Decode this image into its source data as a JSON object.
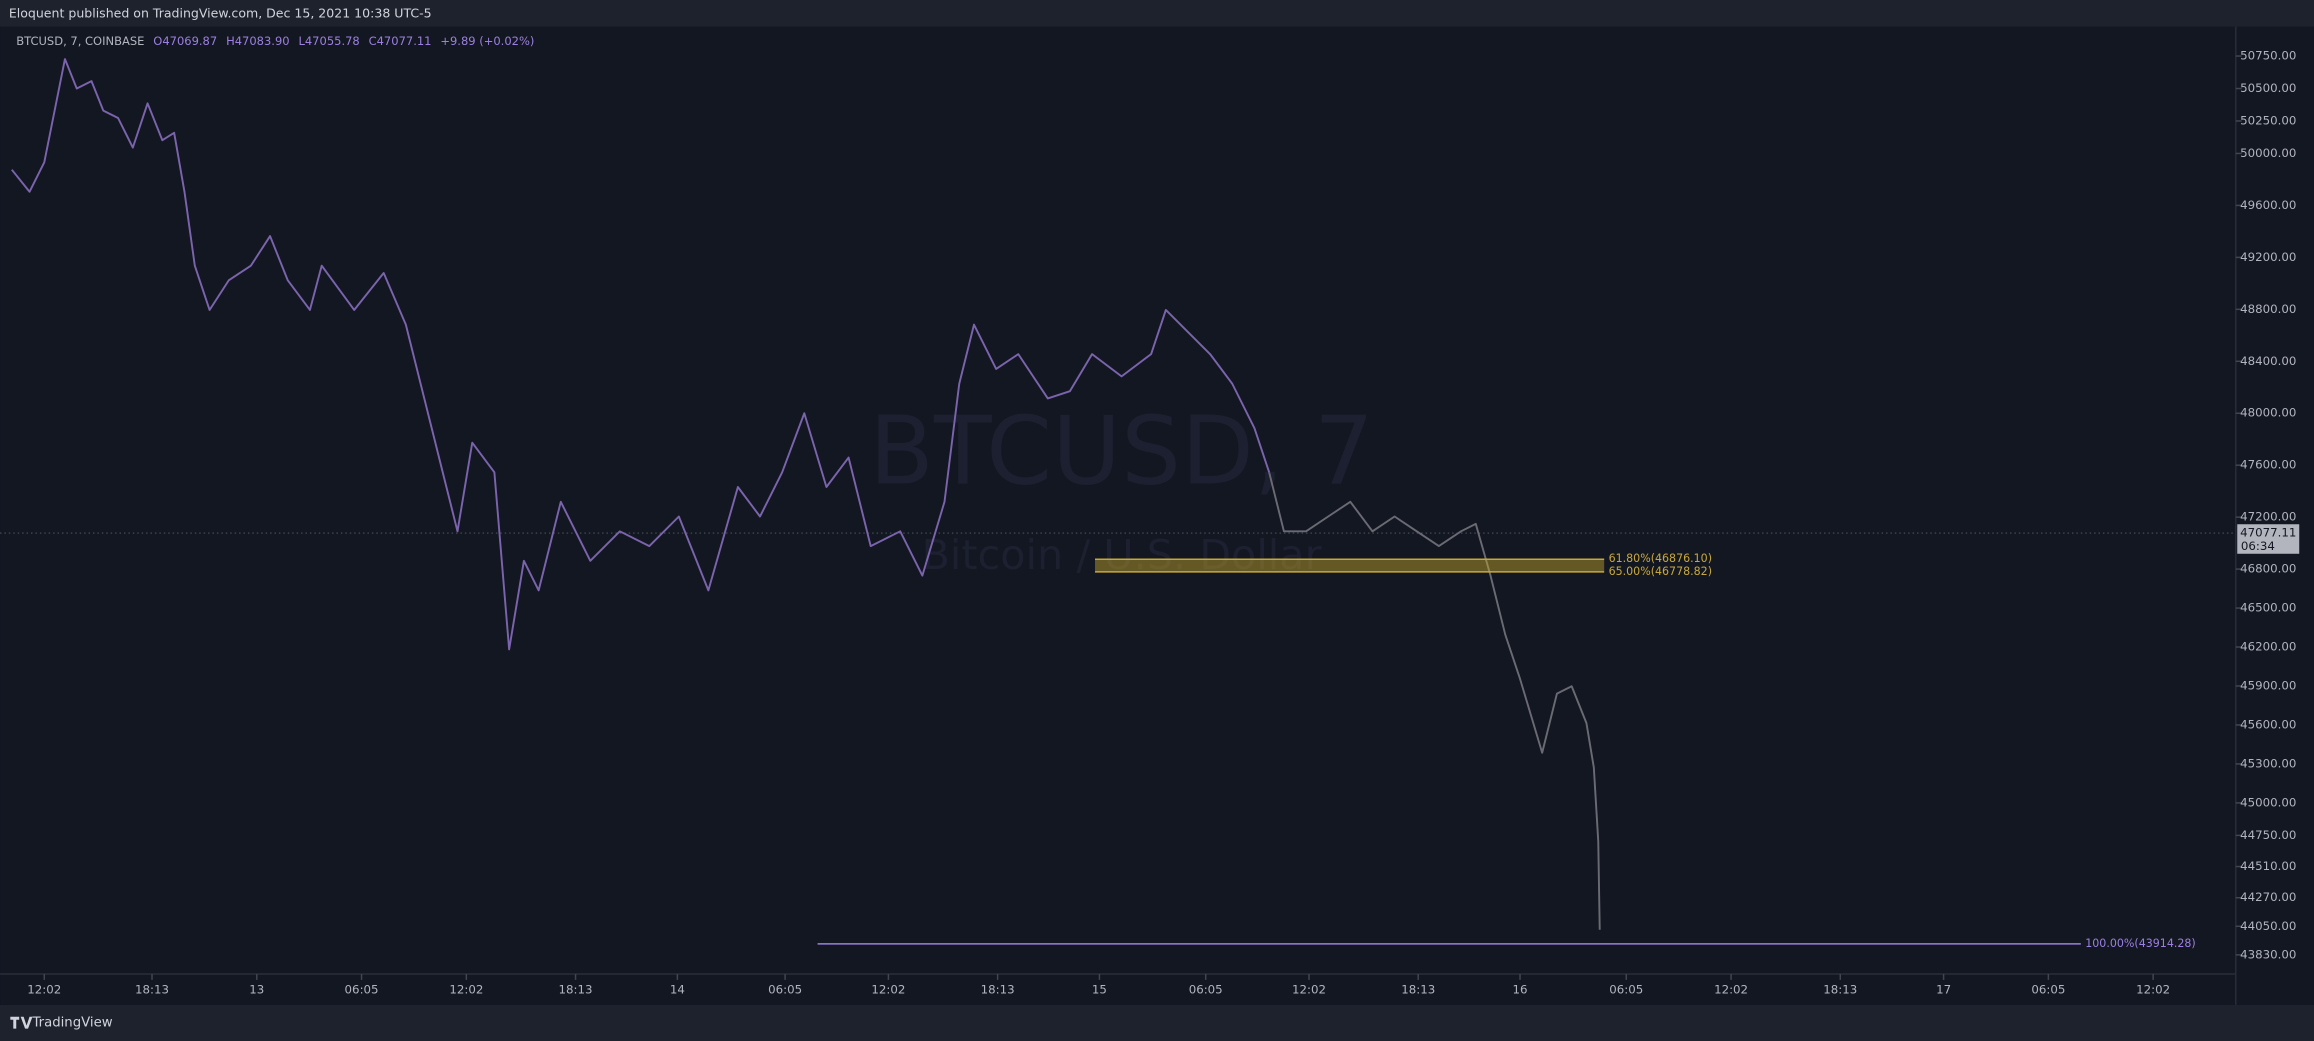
{
  "chart_data": {
    "type": "line",
    "header": "Eloquent published on TradingView.com, Dec 15, 2021 10:38 UTC-5",
    "legend": [
      "BTCUSD, 7, COINBASE",
      "O47069.87",
      "H47083.90",
      "L47055.78",
      "C47077.11",
      "+9.89 (+0.02%)"
    ],
    "watermark": {
      "symbol": "BTCUSD, 7",
      "description": "Bitcoin / U.S. Dollar"
    },
    "footer": "TradingView",
    "xlim": [
      0,
      1515
    ],
    "xticks": [
      {
        "value": 30,
        "label": "12:02"
      },
      {
        "value": 103,
        "label": "18:13"
      },
      {
        "value": 174,
        "label": "13"
      },
      {
        "value": 245,
        "label": "06:05"
      },
      {
        "value": 316,
        "label": "12:02"
      },
      {
        "value": 390,
        "label": "18:13"
      },
      {
        "value": 459,
        "label": "14"
      },
      {
        "value": 532,
        "label": "06:05"
      },
      {
        "value": 602,
        "label": "12:02"
      },
      {
        "value": 676,
        "label": "18:13"
      },
      {
        "value": 745,
        "label": "15"
      },
      {
        "value": 817,
        "label": "06:05"
      },
      {
        "value": 887,
        "label": "12:02"
      },
      {
        "value": 961,
        "label": "18:13"
      },
      {
        "value": 1030,
        "label": "16"
      },
      {
        "value": 1102,
        "label": "06:05"
      },
      {
        "value": 1173,
        "label": "12:02"
      },
      {
        "value": 1247,
        "label": "18:13"
      },
      {
        "value": 1317,
        "label": "17"
      },
      {
        "value": 1388,
        "label": "06:05"
      },
      {
        "value": 1459,
        "label": "12:02"
      }
    ],
    "ylim": [
      43444,
      50977
    ],
    "yticks": [
      {
        "value": 50750,
        "label": "50750.00"
      },
      {
        "value": 50500,
        "label": "50500.00"
      },
      {
        "value": 50250,
        "label": "50250.00"
      },
      {
        "value": 50000,
        "label": "50000.00"
      },
      {
        "value": 49600,
        "label": "49600.00"
      },
      {
        "value": 49200,
        "label": "49200.00"
      },
      {
        "value": 48800,
        "label": "48800.00"
      },
      {
        "value": 48400,
        "label": "48400.00"
      },
      {
        "value": 48000,
        "label": "48000.00"
      },
      {
        "value": 47600,
        "label": "47600.00"
      },
      {
        "value": 47200,
        "label": "47200.00"
      },
      {
        "value": 46800,
        "label": "46800.00"
      },
      {
        "value": 46500,
        "label": "46500.00"
      },
      {
        "value": 46200,
        "label": "46200.00"
      },
      {
        "value": 45900,
        "label": "45900.00"
      },
      {
        "value": 45600,
        "label": "45600.00"
      },
      {
        "value": 45300,
        "label": "45300.00"
      },
      {
        "value": 45000,
        "label": "45000.00"
      },
      {
        "value": 44750,
        "label": "44750.00"
      },
      {
        "value": 44510,
        "label": "44510.00"
      },
      {
        "value": 44270,
        "label": "44270.00"
      },
      {
        "value": 44050,
        "label": "44050.00"
      },
      {
        "value": 43830,
        "label": "43830.00"
      }
    ],
    "series": [
      {
        "color": "#7b64ad",
        "x": [
          8,
          20,
          30,
          38,
          44,
          52,
          62,
          70,
          80,
          90,
          100,
          110,
          118,
          125,
          132,
          142,
          155,
          170,
          183,
          195,
          210,
          218,
          240,
          260,
          275,
          290,
          300,
          310,
          320,
          335,
          345,
          355,
          365,
          380,
          400,
          420,
          440,
          460,
          480,
          500,
          515,
          530,
          545,
          560,
          575,
          590,
          610,
          625,
          640,
          650,
          660,
          675,
          690,
          710,
          725,
          740,
          760,
          780,
          790,
          805,
          820,
          835,
          850,
          860
        ],
        "values": [
          49875,
          49705,
          49932,
          50386,
          50727,
          50500,
          50557,
          50330,
          50273,
          50045,
          50386,
          50102,
          50159,
          49705,
          49136,
          48795,
          49023,
          49136,
          49364,
          49023,
          48795,
          49136,
          48795,
          49080,
          48682,
          48000,
          47545,
          47091,
          47773,
          47545,
          46182,
          46864,
          46636,
          47318,
          46864,
          47091,
          46977,
          47205,
          46636,
          47432,
          47205,
          47545,
          48000,
          47432,
          47659,
          46977,
          47091,
          46750,
          47318,
          48227,
          48682,
          48341,
          48455,
          48114,
          48170,
          48455,
          48284,
          48455,
          48795,
          48625,
          48455,
          48227,
          47886,
          47545
        ]
      },
      {
        "color": "#6a6b72",
        "x": [
          860,
          870,
          885,
          900,
          915,
          930,
          945,
          960,
          975,
          990,
          1000,
          1010,
          1020,
          1030,
          1045,
          1055,
          1065,
          1075,
          1080,
          1083,
          1084
        ],
        "values": [
          47545,
          47091,
          47091,
          47205,
          47318,
          47091,
          47205,
          47091,
          46977,
          47091,
          47148,
          46750,
          46295,
          45955,
          45386,
          45841,
          45898,
          45614,
          45273,
          44705,
          44023
        ]
      }
    ],
    "fib_levels": [
      {
        "value": 46876.1,
        "label": "61.80%(46876.10)",
        "x": [
          742,
          1087
        ]
      },
      {
        "value": 46778.82,
        "label": "65.00%(46778.82)",
        "x": [
          742,
          1087
        ]
      },
      {
        "value": 43914.28,
        "label": "100.00%(43914.28)",
        "x": [
          554,
          1410
        ]
      }
    ],
    "last_price": {
      "value": 47077.11,
      "label": "47077.11",
      "countdown": "06:34"
    }
  }
}
